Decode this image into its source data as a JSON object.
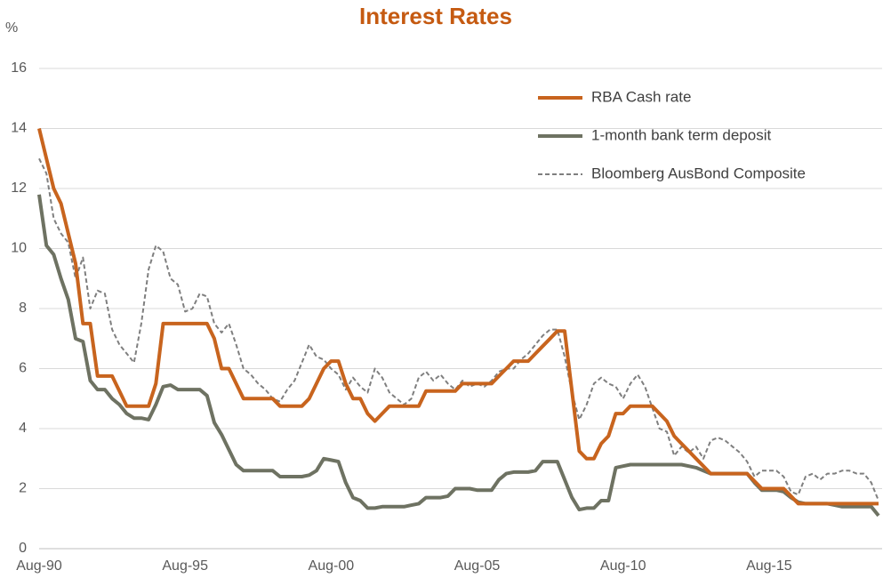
{
  "chart_data": {
    "type": "line",
    "title": "Interest Rates",
    "y_label": "%",
    "categories": [
      "Aug-90",
      null,
      null,
      null,
      null,
      null,
      null,
      null,
      null,
      null,
      null,
      null,
      null,
      null,
      null,
      null,
      null,
      null,
      null,
      null,
      "Aug-95",
      null,
      null,
      null,
      null,
      null,
      null,
      null,
      null,
      null,
      null,
      null,
      null,
      null,
      null,
      null,
      null,
      null,
      null,
      null,
      "Aug-00",
      null,
      null,
      null,
      null,
      null,
      null,
      null,
      null,
      null,
      null,
      null,
      null,
      null,
      null,
      null,
      null,
      null,
      null,
      null,
      "Aug-05",
      null,
      null,
      null,
      null,
      null,
      null,
      null,
      null,
      null,
      null,
      null,
      null,
      null,
      null,
      null,
      null,
      null,
      null,
      null,
      "Aug-10",
      null,
      null,
      null,
      null,
      null,
      null,
      null,
      null,
      null,
      null,
      null,
      null,
      null,
      null,
      null,
      null,
      null,
      null,
      null,
      "Aug-15",
      null,
      null,
      null,
      null,
      null,
      null,
      null,
      null,
      null,
      null,
      null,
      null,
      null,
      null,
      null
    ],
    "series": [
      {
        "name": "RBA Cash rate",
        "color": "#c8641e",
        "dash": "solid",
        "width": 4,
        "values": [
          14,
          13,
          12,
          11.5,
          10.5,
          9.5,
          7.5,
          7.5,
          5.75,
          5.75,
          5.75,
          5.25,
          4.75,
          4.75,
          4.75,
          4.75,
          5.5,
          7.5,
          7.5,
          7.5,
          7.5,
          7.5,
          7.5,
          7.5,
          7,
          6,
          6,
          5.5,
          5,
          5,
          5,
          5,
          5,
          4.75,
          4.75,
          4.75,
          4.75,
          5,
          5.5,
          6,
          6.25,
          6.25,
          5.5,
          5,
          5,
          4.5,
          4.25,
          4.5,
          4.75,
          4.75,
          4.75,
          4.75,
          4.75,
          5.25,
          5.25,
          5.25,
          5.25,
          5.25,
          5.5,
          5.5,
          5.5,
          5.5,
          5.5,
          5.75,
          6,
          6.25,
          6.25,
          6.25,
          6.5,
          6.75,
          7,
          7.25,
          7.25,
          5.25,
          3.25,
          3,
          3,
          3.5,
          3.75,
          4.5,
          4.5,
          4.75,
          4.75,
          4.75,
          4.75,
          4.5,
          4.25,
          3.75,
          3.5,
          3.25,
          3,
          2.75,
          2.5,
          2.5,
          2.5,
          2.5,
          2.5,
          2.5,
          2.25,
          2,
          2,
          2,
          2,
          1.75,
          1.5,
          1.5,
          1.5,
          1.5,
          1.5,
          1.5,
          1.5,
          1.5,
          1.5,
          1.5,
          1.5,
          1.5
        ]
      },
      {
        "name": "1-month bank term deposit",
        "color": "#6e7262",
        "dash": "solid",
        "width": 4,
        "values": [
          11.8,
          10.1,
          9.8,
          9,
          8.3,
          7,
          6.9,
          5.6,
          5.3,
          5.3,
          5,
          4.8,
          4.5,
          4.35,
          4.35,
          4.3,
          4.8,
          5.4,
          5.45,
          5.3,
          5.3,
          5.3,
          5.3,
          5.1,
          4.2,
          3.8,
          3.3,
          2.8,
          2.6,
          2.6,
          2.6,
          2.6,
          2.6,
          2.4,
          2.4,
          2.4,
          2.4,
          2.45,
          2.6,
          3,
          2.95,
          2.9,
          2.2,
          1.7,
          1.6,
          1.35,
          1.35,
          1.4,
          1.4,
          1.4,
          1.4,
          1.45,
          1.5,
          1.7,
          1.7,
          1.7,
          1.75,
          2,
          2,
          2,
          1.95,
          1.95,
          1.95,
          2.3,
          2.5,
          2.55,
          2.55,
          2.55,
          2.6,
          2.9,
          2.9,
          2.9,
          2.3,
          1.7,
          1.3,
          1.35,
          1.35,
          1.6,
          1.6,
          2.7,
          2.75,
          2.8,
          2.8,
          2.8,
          2.8,
          2.8,
          2.8,
          2.8,
          2.8,
          2.75,
          2.7,
          2.6,
          2.5,
          2.5,
          2.5,
          2.5,
          2.5,
          2.5,
          2.2,
          1.95,
          1.95,
          1.95,
          1.9,
          1.7,
          1.55,
          1.5,
          1.5,
          1.5,
          1.5,
          1.45,
          1.4,
          1.4,
          1.4,
          1.4,
          1.4,
          1.1
        ]
      },
      {
        "name": "Bloomberg AusBond Composite",
        "color": "#7f7f7f",
        "dash": "dashed",
        "width": 2,
        "values": [
          13,
          12.5,
          11,
          10.5,
          10.2,
          9,
          9.7,
          8,
          8.6,
          8.5,
          7.3,
          6.8,
          6.5,
          6.2,
          7.5,
          9.3,
          10.1,
          9.9,
          9,
          8.8,
          7.9,
          8,
          8.5,
          8.4,
          7.5,
          7.2,
          7.5,
          6.8,
          6,
          5.8,
          5.5,
          5.3,
          5,
          4.9,
          5.3,
          5.6,
          6.2,
          6.8,
          6.4,
          6.3,
          6,
          5.8,
          5.3,
          5.7,
          5.4,
          5.2,
          6,
          5.7,
          5.2,
          5,
          4.8,
          5,
          5.7,
          5.9,
          5.6,
          5.8,
          5.5,
          5.3,
          5.6,
          5.4,
          5.5,
          5.4,
          5.6,
          5.9,
          6,
          6,
          6.3,
          6.5,
          6.8,
          7.1,
          7.3,
          7.3,
          6.4,
          5.2,
          4.3,
          4.8,
          5.5,
          5.7,
          5.5,
          5.4,
          5,
          5.5,
          5.8,
          5.4,
          4.7,
          4,
          3.9,
          3.1,
          3.4,
          3.2,
          3.4,
          3,
          3.6,
          3.7,
          3.6,
          3.4,
          3.2,
          2.9,
          2.4,
          2.6,
          2.6,
          2.6,
          2.4,
          1.9,
          1.8,
          2.4,
          2.5,
          2.3,
          2.5,
          2.5,
          2.6,
          2.6,
          2.5,
          2.5,
          2.2,
          1.6
        ]
      }
    ],
    "ylim": [
      0,
      16
    ],
    "yticks": [
      0,
      2,
      4,
      6,
      8,
      10,
      12,
      14,
      16
    ],
    "grid": true,
    "legend": "upper right"
  }
}
